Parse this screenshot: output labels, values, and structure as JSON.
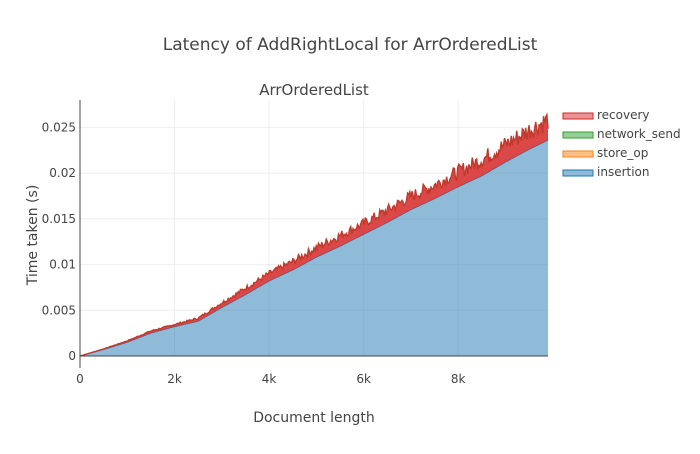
{
  "chart_data": {
    "type": "area",
    "title": "Latency of AddRightLocal for ArrOrderedList",
    "subplot_title": "ArrOrderedList",
    "xlabel": "Document length",
    "ylabel": "Time taken (s)",
    "xlim": [
      0,
      9900
    ],
    "ylim": [
      0,
      0.028
    ],
    "x_ticks": [
      {
        "value": 0,
        "label": "0"
      },
      {
        "value": 2000,
        "label": "2k"
      },
      {
        "value": 4000,
        "label": "4k"
      },
      {
        "value": 6000,
        "label": "6k"
      },
      {
        "value": 8000,
        "label": "8k"
      }
    ],
    "y_ticks": [
      {
        "value": 0,
        "label": "0"
      },
      {
        "value": 0.005,
        "label": "0.005"
      },
      {
        "value": 0.01,
        "label": "0.01"
      },
      {
        "value": 0.015,
        "label": "0.015"
      },
      {
        "value": 0.02,
        "label": "0.02"
      },
      {
        "value": 0.025,
        "label": "0.025"
      }
    ],
    "grid": true,
    "stacked": true,
    "legend_position": "right",
    "x": [
      0,
      500,
      1000,
      1500,
      2000,
      2500,
      3000,
      3500,
      4000,
      4500,
      5000,
      5500,
      6000,
      6500,
      7000,
      7500,
      8000,
      8500,
      9000,
      9500,
      9900
    ],
    "series": [
      {
        "name": "insertion",
        "color": "#1f77b4",
        "values": [
          0.0,
          0.0007,
          0.0015,
          0.0025,
          0.0032,
          0.0038,
          0.0053,
          0.0067,
          0.0082,
          0.0094,
          0.0108,
          0.012,
          0.0133,
          0.0146,
          0.016,
          0.0172,
          0.0185,
          0.0197,
          0.0212,
          0.0226,
          0.0236
        ]
      },
      {
        "name": "store_op",
        "color": "#ff7f0e",
        "values": [
          0,
          0,
          0,
          0,
          0,
          0,
          0,
          0,
          0,
          0,
          0,
          0,
          0,
          0,
          0,
          0,
          0,
          0,
          0,
          0,
          0
        ]
      },
      {
        "name": "network_send",
        "color": "#2ca02c",
        "values": [
          0,
          0,
          0,
          0,
          0,
          0,
          0,
          0,
          0,
          0,
          0,
          0,
          0,
          0,
          0,
          0,
          0,
          0,
          0,
          0,
          0
        ]
      },
      {
        "name": "recovery",
        "color": "#d62728",
        "values": [
          0.0,
          0.0001,
          0.0002,
          0.0003,
          0.0003,
          0.0004,
          0.0006,
          0.0008,
          0.0009,
          0.001,
          0.0011,
          0.0012,
          0.0012,
          0.0013,
          0.0014,
          0.0014,
          0.0015,
          0.0016,
          0.0017,
          0.0018,
          0.0019
        ]
      }
    ],
    "legend_order": [
      "recovery",
      "network_send",
      "store_op",
      "insertion"
    ]
  }
}
